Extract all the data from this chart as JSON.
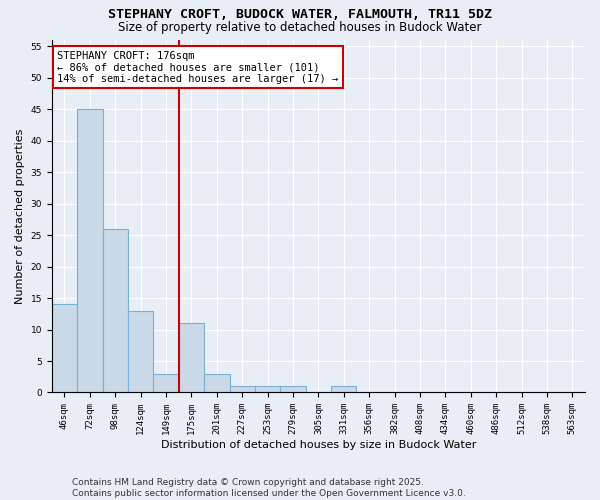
{
  "title1": "STEPHANY CROFT, BUDOCK WATER, FALMOUTH, TR11 5DZ",
  "title2": "Size of property relative to detached houses in Budock Water",
  "xlabel": "Distribution of detached houses by size in Budock Water",
  "ylabel": "Number of detached properties",
  "categories": [
    "46sqm",
    "72sqm",
    "98sqm",
    "124sqm",
    "149sqm",
    "175sqm",
    "201sqm",
    "227sqm",
    "253sqm",
    "279sqm",
    "305sqm",
    "331sqm",
    "356sqm",
    "382sqm",
    "408sqm",
    "434sqm",
    "460sqm",
    "486sqm",
    "512sqm",
    "538sqm",
    "563sqm"
  ],
  "values": [
    14,
    45,
    26,
    13,
    3,
    11,
    3,
    1,
    1,
    1,
    0,
    1,
    0,
    0,
    0,
    0,
    0,
    0,
    0,
    0,
    0
  ],
  "bar_color": "#c9d9e8",
  "bar_edge_color": "#7bafd4",
  "bar_linewidth": 0.8,
  "ref_line_index": 5,
  "ref_line_label": "STEPHANY CROFT: 176sqm",
  "annotation_line1": "← 86% of detached houses are smaller (101)",
  "annotation_line2": "14% of semi-detached houses are larger (17) →",
  "annotation_box_color": "#ffffff",
  "annotation_box_edge": "#cc0000",
  "ref_line_color": "#cc0000",
  "background_color": "#e8eef5",
  "plot_background": "#e8eef5",
  "ylim": [
    0,
    56
  ],
  "yticks": [
    0,
    5,
    10,
    15,
    20,
    25,
    30,
    35,
    40,
    45,
    50,
    55
  ],
  "footnote1": "Contains HM Land Registry data © Crown copyright and database right 2025.",
  "footnote2": "Contains public sector information licensed under the Open Government Licence v3.0.",
  "title_fontsize": 9.5,
  "subtitle_fontsize": 8.5,
  "tick_fontsize": 6.5,
  "label_fontsize": 8,
  "footnote_fontsize": 6.5,
  "annot_fontsize": 7.5
}
